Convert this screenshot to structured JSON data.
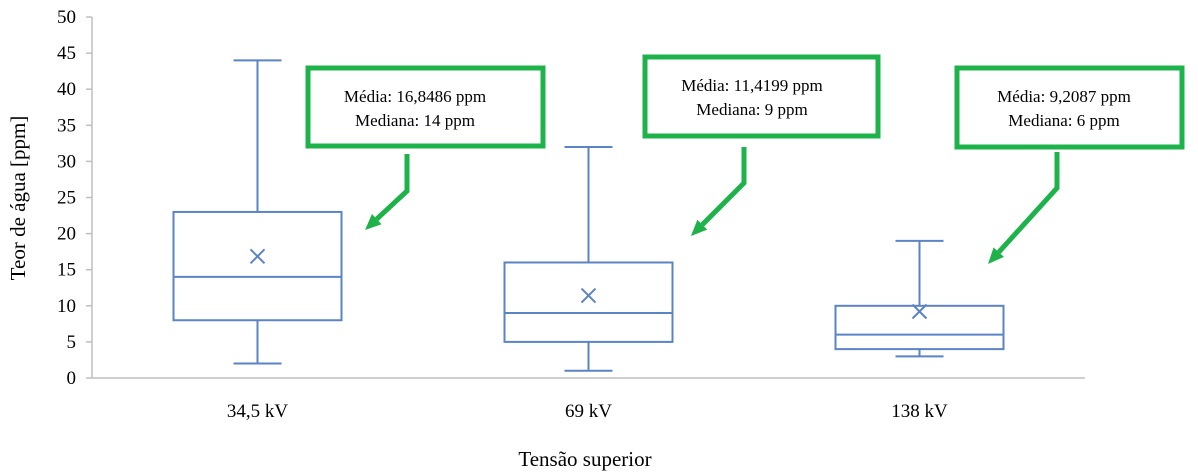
{
  "chart_data": {
    "type": "box",
    "xlabel": "Tensão superior",
    "ylabel": "Teor de água [ppm]",
    "ylim": [
      0,
      50
    ],
    "yticks": [
      0,
      5,
      10,
      15,
      20,
      25,
      30,
      35,
      40,
      45,
      50
    ],
    "grid": false,
    "categories": [
      "34,5 kV",
      "69 kV",
      "138 kV"
    ],
    "boxes": [
      {
        "category": "34,5 kV",
        "min": 2,
        "q1": 8,
        "median": 14,
        "q3": 23,
        "max": 44,
        "mean": 16.8486
      },
      {
        "category": "69 kV",
        "min": 1,
        "q1": 5,
        "median": 9,
        "q3": 16,
        "max": 32,
        "mean": 11.4199
      },
      {
        "category": "138 kV",
        "min": 3,
        "q1": 4,
        "median": 6,
        "q3": 10,
        "max": 19,
        "mean": 9.2087
      }
    ],
    "annotations": [
      {
        "category": "34,5 kV",
        "line1": "Média: 16,8486 ppm",
        "line2": "Mediana: 14 ppm"
      },
      {
        "category": "69 kV",
        "line1": "Média: 11,4199 ppm",
        "line2": "Mediana: 9 ppm"
      },
      {
        "category": "138 kV",
        "line1": "Média: 9,2087 ppm",
        "line2": "Mediana: 6 ppm"
      }
    ],
    "colors": {
      "box": "#5b84c4",
      "callout": "#1db34a",
      "axis": "#bfbfbf"
    }
  }
}
